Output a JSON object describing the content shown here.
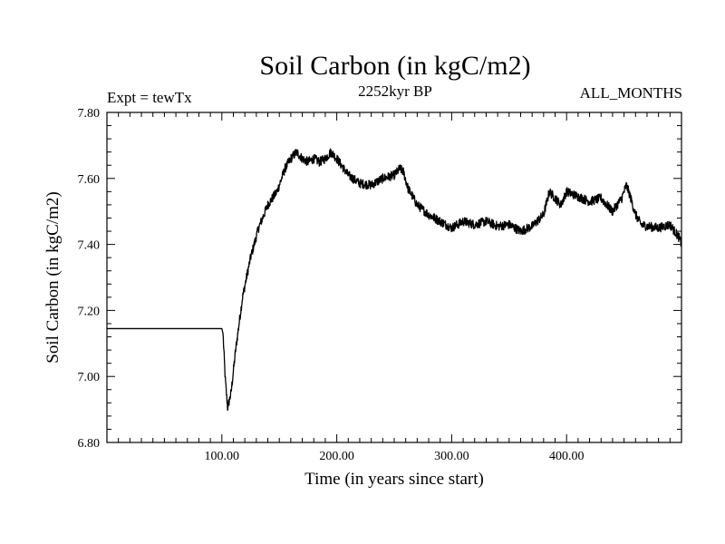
{
  "chart_data": {
    "type": "line",
    "title": "Soil Carbon (in kgC/m2)",
    "subtitle_left": "Expt = tewTx",
    "subtitle_center": "2252kyr BP",
    "subtitle_right": "ALL_MONTHS",
    "xlabel": "Time (in years since start)",
    "ylabel": "Soil Carbon (in kgC/m2)",
    "xlim": [
      0,
      500
    ],
    "ylim": [
      6.8,
      7.8
    ],
    "x_ticks": [
      100,
      200,
      300,
      400
    ],
    "x_tick_labels": [
      "100.00",
      "200.00",
      "300.00",
      "400.00"
    ],
    "y_ticks": [
      6.8,
      7.0,
      7.2,
      7.4,
      7.6,
      7.8
    ],
    "y_tick_labels": [
      "6.80",
      "7.00",
      "7.20",
      "7.40",
      "7.60",
      "7.80"
    ],
    "series": [
      {
        "name": "Soil Carbon",
        "x": [
          0,
          100,
          101,
          103,
          105,
          108,
          112,
          118,
          125,
          132,
          140,
          148,
          155,
          160,
          165,
          170,
          175,
          180,
          185,
          190,
          195,
          200,
          210,
          220,
          230,
          240,
          250,
          255,
          258,
          262,
          270,
          280,
          290,
          300,
          310,
          320,
          330,
          340,
          350,
          360,
          370,
          380,
          385,
          390,
          395,
          400,
          410,
          420,
          430,
          440,
          448,
          452,
          455,
          460,
          465,
          470,
          480,
          490,
          498,
          500
        ],
        "y": [
          7.145,
          7.145,
          7.13,
          6.99,
          6.905,
          6.95,
          7.08,
          7.24,
          7.36,
          7.45,
          7.52,
          7.56,
          7.63,
          7.66,
          7.68,
          7.66,
          7.65,
          7.66,
          7.65,
          7.66,
          7.68,
          7.66,
          7.61,
          7.585,
          7.58,
          7.6,
          7.61,
          7.63,
          7.62,
          7.57,
          7.52,
          7.49,
          7.47,
          7.45,
          7.47,
          7.46,
          7.47,
          7.455,
          7.46,
          7.44,
          7.455,
          7.49,
          7.56,
          7.54,
          7.52,
          7.56,
          7.545,
          7.53,
          7.54,
          7.5,
          7.54,
          7.58,
          7.55,
          7.49,
          7.46,
          7.455,
          7.45,
          7.46,
          7.42,
          7.4
        ]
      }
    ]
  }
}
